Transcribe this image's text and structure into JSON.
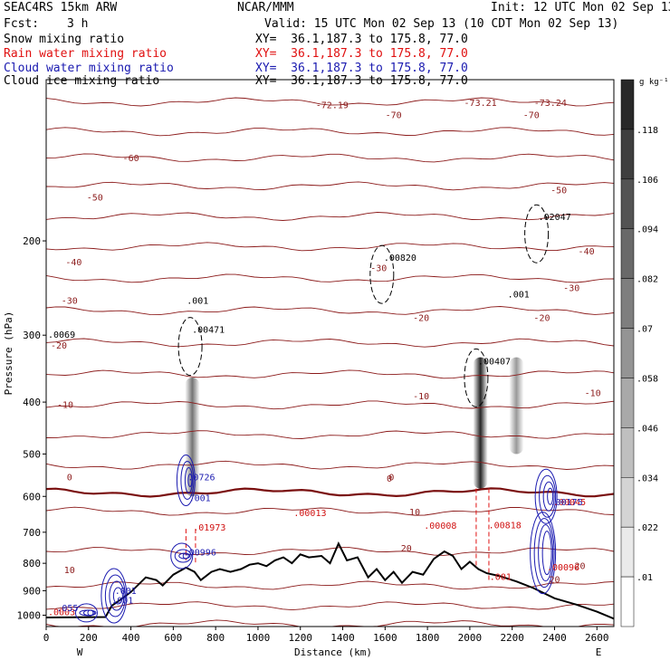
{
  "header": {
    "model": "SEAC4RS 15km ARW",
    "org": "NCAR/MMM",
    "init": "Init: 12 UTC Mon 02 Sep 13",
    "fcst_label": "Fcst:",
    "fcst_value": "3 h",
    "valid": "Valid: 15 UTC Mon 02 Sep 13 (10 CDT Mon 02 Sep 13)",
    "fields": [
      {
        "name": "Snow mixing ratio",
        "xy": "XY=  36.1,187.3 to 175.8, 77.0",
        "color": "#000000"
      },
      {
        "name": "Rain water mixing ratio",
        "xy": "XY=  36.1,187.3 to 175.8, 77.0",
        "color": "#e01010"
      },
      {
        "name": "Cloud water mixing ratio",
        "xy": "XY=  36.1,187.3 to 175.8, 77.0",
        "color": "#1a1ab0"
      },
      {
        "name": "Cloud ice mixing ratio",
        "xy": "XY=  36.1,187.3 to 175.8, 77.0",
        "color": "#000000"
      }
    ]
  },
  "chart_data": {
    "type": "cross-section contour",
    "xlabel": "Distance (km)",
    "ylabel": "Pressure (hPa)",
    "xlim": [
      0,
      2680
    ],
    "ylim": [
      1050,
      100
    ],
    "y_log_scale": true,
    "x_ticks": [
      "0",
      "200",
      "400",
      "600",
      "800",
      "1000",
      "1200",
      "1400",
      "1600",
      "1800",
      "2000",
      "2200",
      "2400",
      "2600"
    ],
    "y_ticks": [
      "200",
      "300",
      "400",
      "500",
      "600",
      "700",
      "800",
      "900",
      "1000"
    ],
    "direction_labels": {
      "left": "W",
      "right": "E"
    },
    "colorbar": {
      "unit": "g kg⁻¹",
      "ticks": [
        ".01",
        ".022",
        ".034",
        ".046",
        ".058",
        ".07",
        ".082",
        ".094",
        ".106",
        ".118"
      ]
    },
    "temperature_contour_labels": [
      "-72.19",
      "-73.21",
      "-73.24",
      "-70",
      "-70",
      "-60",
      "-50",
      "-50",
      "-40",
      "-40",
      "-30",
      "-30",
      "-30",
      "-20",
      "-20",
      "-20",
      "-10",
      "-10",
      "-10",
      "0",
      "0",
      "0",
      "10",
      "10",
      "20",
      "20",
      "20"
    ],
    "snow_max_labels": [
      {
        "x": 680,
        "p": 297,
        "text": ".00471"
      },
      {
        "x": 1585,
        "p": 218,
        "text": ".00820"
      },
      {
        "x": 2030,
        "p": 340,
        "text": ".00407"
      },
      {
        "x": 2315,
        "p": 183,
        "text": ".02047"
      },
      {
        "x": 0,
        "p": 303,
        "text": ".0069"
      },
      {
        "x": 655,
        "p": 262,
        "text": ".001"
      },
      {
        "x": 2170,
        "p": 255,
        "text": ".001"
      }
    ],
    "rain_max_labels": [
      {
        "x": 685,
        "p": 695,
        "text": ".01973"
      },
      {
        "x": 1160,
        "p": 653,
        "text": ".00013"
      },
      {
        "x": 1775,
        "p": 690,
        "text": ".00008"
      },
      {
        "x": 2080,
        "p": 688,
        "text": ".00818"
      },
      {
        "x": 2355,
        "p": 825,
        "text": ".00096"
      },
      {
        "x": 2085,
        "p": 860,
        "text": ".001"
      },
      {
        "x": 0,
        "p": 1000,
        "text": ".0003"
      },
      {
        "x": 2385,
        "p": 623,
        "text": ".00045"
      }
    ],
    "cloud_water_max_labels": [
      {
        "x": 660,
        "p": 560,
        "text": ".0726"
      },
      {
        "x": 665,
        "p": 612,
        "text": ".001"
      },
      {
        "x": 640,
        "p": 773,
        "text": ".00996"
      },
      {
        "x": 315,
        "p": 913,
        "text": ".001"
      },
      {
        "x": 300,
        "p": 950,
        "text": ".001"
      },
      {
        "x": 40,
        "p": 983,
        "text": ".055"
      },
      {
        "x": 2370,
        "p": 623,
        "text": ".00175"
      }
    ],
    "snow_shading_columns": [
      {
        "x": 690,
        "p_top": 360,
        "p_bottom": 600,
        "peak": 0.06
      },
      {
        "x": 2050,
        "p_top": 330,
        "p_bottom": 580,
        "peak": 0.12
      },
      {
        "x": 2220,
        "p_top": 330,
        "p_bottom": 500,
        "peak": 0.03
      }
    ],
    "terrain_profile": {
      "x": [
        0,
        280,
        310,
        360,
        400,
        470,
        520,
        550,
        600,
        660,
        700,
        730,
        780,
        820,
        870,
        920,
        960,
        1000,
        1040,
        1080,
        1120,
        1160,
        1200,
        1240,
        1300,
        1340,
        1380,
        1420,
        1470,
        1520,
        1560,
        1600,
        1640,
        1680,
        1730,
        1780,
        1830,
        1880,
        1920,
        1960,
        2000,
        2040,
        2080,
        2140,
        2220,
        2300,
        2400,
        2500,
        2600,
        2680
      ],
      "p": [
        1010,
        1008,
        960,
        930,
        905,
        850,
        860,
        880,
        840,
        815,
        830,
        860,
        830,
        820,
        830,
        820,
        805,
        800,
        810,
        790,
        780,
        800,
        770,
        780,
        775,
        800,
        735,
        790,
        780,
        850,
        820,
        860,
        830,
        870,
        830,
        840,
        785,
        760,
        775,
        820,
        795,
        820,
        835,
        845,
        865,
        890,
        930,
        955,
        985,
        1015
      ]
    }
  }
}
